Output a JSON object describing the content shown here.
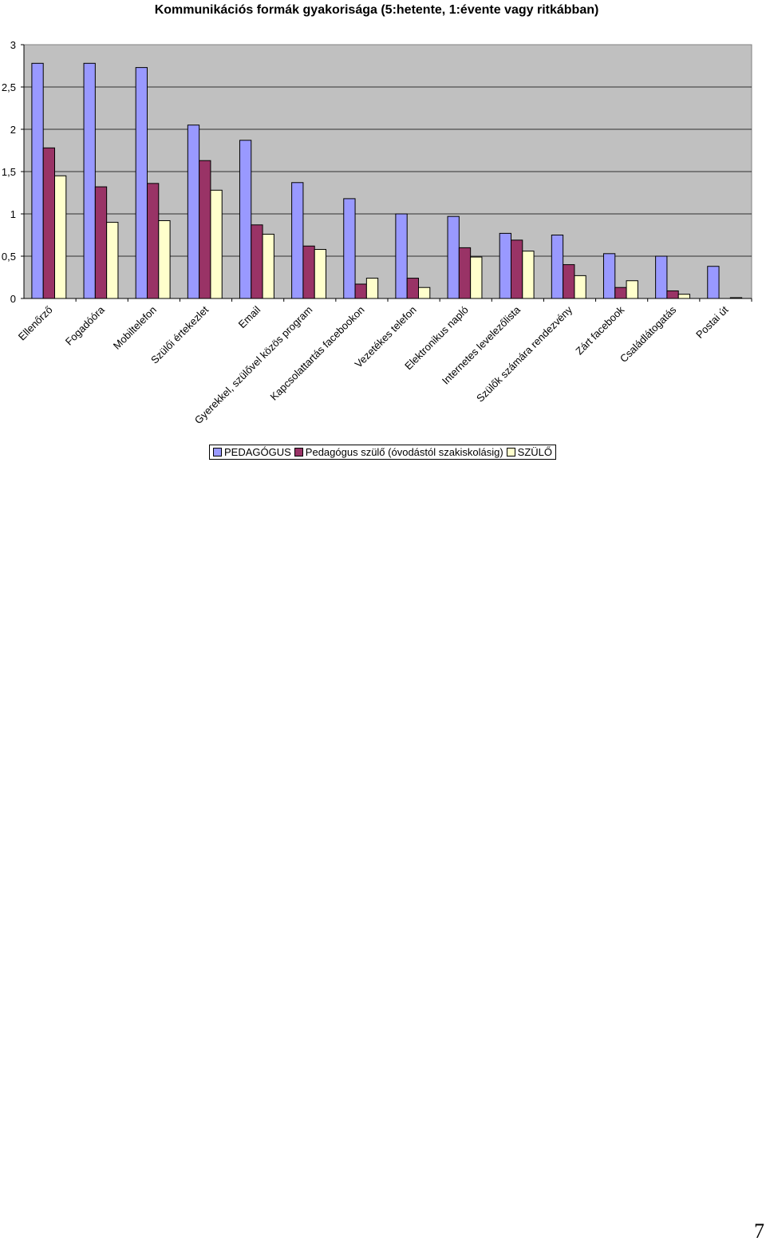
{
  "chart_data": {
    "type": "bar",
    "title": "Kommunikációs formák gyakorisága (5:hetente, 1:évente vagy ritkábban)",
    "xlabel": "",
    "ylabel": "",
    "ylim": [
      0,
      3
    ],
    "yticks": [
      "0",
      "0,5",
      "1",
      "1,5",
      "2",
      "2,5",
      "3"
    ],
    "grid": true,
    "legend_position": "bottom",
    "categories": [
      "Ellenőrző",
      "Fogadóóra",
      "Mobiltelefon",
      "Szülői értekezlet",
      "Email",
      "Gyerekkel, szülővel közös program",
      "Kapcsolattartás facebookon",
      "Vezetékes telefon",
      "Elektronikus napló",
      "Internetes levelezőlista",
      "Szülők számára rendezvény",
      "Zárt facebook",
      "Családlátogatás",
      "Postai út"
    ],
    "series": [
      {
        "name": "PEDAGÓGUS",
        "color": "#9999FF",
        "values": [
          2.78,
          2.78,
          2.73,
          2.05,
          1.87,
          1.37,
          1.18,
          1.0,
          0.97,
          0.77,
          0.75,
          0.53,
          0.5,
          0.38
        ]
      },
      {
        "name": "Pedagógus szülő (óvodástól szakiskolásig)",
        "color": "#993366",
        "values": [
          1.78,
          1.32,
          1.36,
          1.63,
          0.87,
          0.62,
          0.17,
          0.24,
          0.6,
          0.69,
          0.4,
          0.13,
          0.09,
          0.0
        ]
      },
      {
        "name": "SZÜLŐ",
        "color": "#FFFFCC",
        "values": [
          1.45,
          0.9,
          0.92,
          1.28,
          0.76,
          0.58,
          0.24,
          0.13,
          0.49,
          0.56,
          0.27,
          0.21,
          0.05,
          0.01
        ]
      }
    ]
  },
  "page_number": "7"
}
